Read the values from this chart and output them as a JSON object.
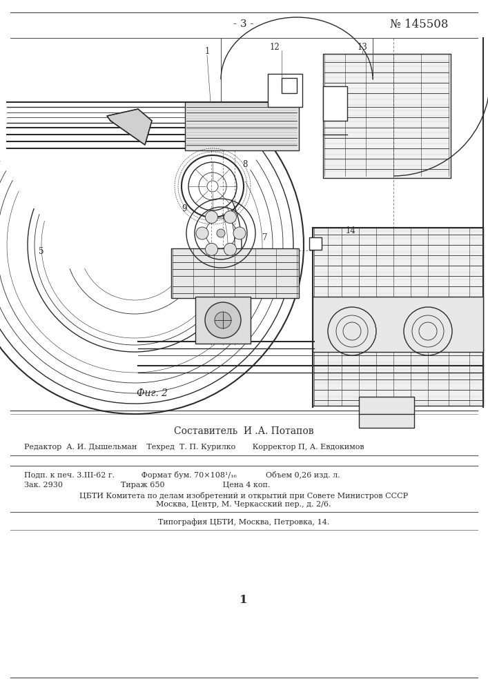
{
  "page_number": "- 3 -",
  "patent_number": "№ 145508",
  "fig_label": "Фиг. 2",
  "composer_label": "Составитель  И .А. Потапов",
  "editor_line": "Редактор  А. И. Дышельман    Техред  Т. П. Курилко       Корректор П, А. Евдокимов",
  "print_line1": "Подп. к печ. 3.ІІІ-62 г.           Формат бум. 70×108¹/₁₆            Объем 0,26 изд. л.",
  "print_line2": "Зак. 2930                        Тираж 650                        Цена 4 коп.",
  "org_line1": "ЦБТИ Комитета по делам изобретений и открытий при Совете Министров СССР",
  "org_line2": "Москва, Центр, М. Черкасский пер., д. 2/6.",
  "print_org": "Типография ЦБТИ, Москва, Петровка, 14.",
  "page_num_bottom": "1",
  "bg_color": "#ffffff",
  "text_color": "#1a1a1a",
  "border_color": "#333333"
}
